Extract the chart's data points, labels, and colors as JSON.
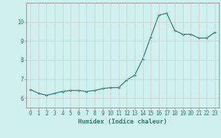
{
  "x": [
    0,
    1,
    2,
    3,
    4,
    5,
    6,
    7,
    8,
    9,
    10,
    11,
    12,
    13,
    14,
    15,
    16,
    17,
    18,
    19,
    20,
    21,
    22,
    23
  ],
  "y": [
    6.45,
    6.25,
    6.15,
    6.25,
    6.35,
    6.4,
    6.4,
    6.35,
    6.4,
    6.5,
    6.55,
    6.55,
    6.95,
    7.2,
    8.05,
    9.2,
    10.35,
    10.45,
    9.55,
    9.35,
    9.35,
    9.15,
    9.15,
    9.45
  ],
  "line_color": "#2d7a6e",
  "marker": "D",
  "marker_size": 1.8,
  "bg_color": "#cff0ee",
  "grid_color": "#c8c8c8",
  "xlabel": "Humidex (Indice chaleur)",
  "xlim": [
    -0.5,
    23.5
  ],
  "ylim": [
    5.5,
    11.0
  ],
  "yticks": [
    6,
    7,
    8,
    9,
    10
  ],
  "xticks": [
    0,
    1,
    2,
    3,
    4,
    5,
    6,
    7,
    8,
    9,
    10,
    11,
    12,
    13,
    14,
    15,
    16,
    17,
    18,
    19,
    20,
    21,
    22,
    23
  ],
  "xlabel_fontsize": 6.5,
  "tick_fontsize": 5.5
}
